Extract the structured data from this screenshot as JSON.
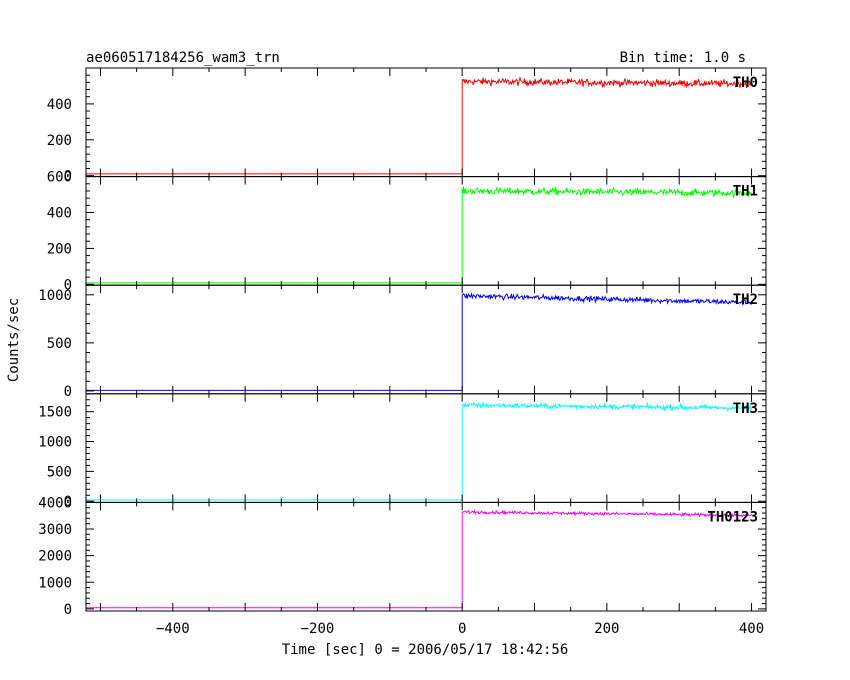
{
  "chart_data": {
    "type": "line",
    "title_left": "ae060517184256_wam3_trn",
    "title_right": "Bin time: 1.0 s",
    "xlabel": "Time [sec] 0 = 2006/05/17 18:42:56",
    "ylabel": "Counts/sec",
    "xlim": [
      -520,
      420
    ],
    "x_ticks": [
      -400,
      -200,
      0,
      200,
      400
    ],
    "x_tick_labels": [
      "−400",
      "−200",
      "0",
      "200",
      "400"
    ],
    "step_time": 0,
    "x_start": -520,
    "x_end": 400,
    "series": [
      {
        "name": "TH0",
        "color": "#ff0000",
        "ylim": [
          -5,
          600
        ],
        "y_ticks": [
          0,
          200,
          400
        ],
        "y_tick_labels": [
          "0",
          "200",
          "400"
        ],
        "pre_level": 10,
        "post_start": 525,
        "post_end": 512,
        "noise": 14
      },
      {
        "name": "TH1",
        "color": "#00ff00",
        "ylim": [
          -5,
          600
        ],
        "y_ticks": [
          0,
          200,
          400,
          600
        ],
        "y_tick_labels": [
          "0",
          "200",
          "400",
          "600"
        ],
        "pre_level": 8,
        "post_start": 520,
        "post_end": 508,
        "noise": 14
      },
      {
        "name": "TH2",
        "color": "#0000ff",
        "ylim": [
          -30,
          1100
        ],
        "y_ticks": [
          0,
          500,
          1000
        ],
        "y_tick_labels": [
          "0",
          "500",
          "1000"
        ],
        "pre_level": 5,
        "post_start": 990,
        "post_end": 920,
        "noise": 20
      },
      {
        "name": "TH3",
        "color": "#00ffff",
        "ylim": [
          -20,
          1800
        ],
        "y_ticks": [
          0,
          500,
          1000,
          1500
        ],
        "y_tick_labels": [
          "0",
          "500",
          "1000",
          "1500"
        ],
        "pre_level": 20,
        "post_start": 1610,
        "post_end": 1560,
        "noise": 30
      },
      {
        "name": "TH0123",
        "color": "#ff00ff",
        "ylim": [
          -80,
          4000
        ],
        "y_ticks": [
          0,
          1000,
          2000,
          3000,
          4000
        ],
        "y_tick_labels": [
          "0",
          "1000",
          "2000",
          "3000",
          "4000"
        ],
        "pre_level": 40,
        "post_start": 3640,
        "post_end": 3510,
        "noise": 40
      }
    ],
    "grid": false,
    "legend": "per-panel labels at top-right"
  }
}
